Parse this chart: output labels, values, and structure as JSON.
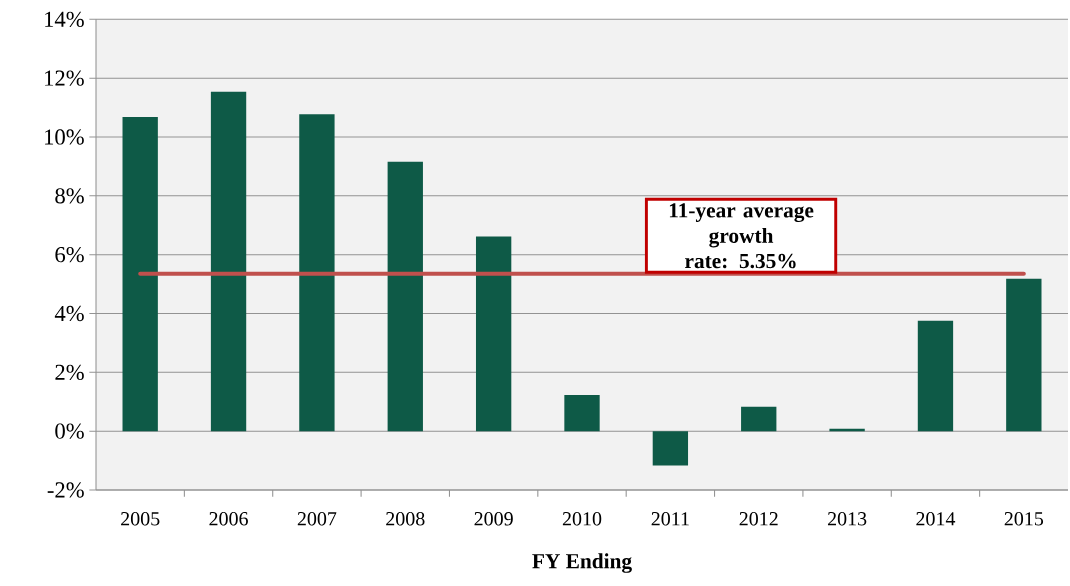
{
  "chart_data": {
    "type": "bar",
    "xlabel": "FY Ending",
    "categories": [
      "2005",
      "2006",
      "2007",
      "2008",
      "2009",
      "2010",
      "2011",
      "2012",
      "2013",
      "2014",
      "2015"
    ],
    "values": [
      10.68,
      11.54,
      10.77,
      9.16,
      6.62,
      1.23,
      -1.17,
      0.83,
      0.08,
      3.75,
      5.18
    ],
    "color": "#0e5a47",
    "ylim": [
      -2,
      14
    ],
    "yticks": [
      {
        "value": -2,
        "label": "-2%"
      },
      {
        "value": 0,
        "label": "0%"
      },
      {
        "value": 2,
        "label": "2%"
      },
      {
        "value": 4,
        "label": "4%"
      },
      {
        "value": 6,
        "label": "6%"
      },
      {
        "value": 8,
        "label": "8%"
      },
      {
        "value": 10,
        "label": "10%"
      },
      {
        "value": 12,
        "label": "12%"
      },
      {
        "value": 14,
        "label": "14%"
      }
    ],
    "grid": "y",
    "ref_lines": [
      {
        "axis": "y",
        "value": 5.35,
        "label": "11-year average growth rate: 5.35%",
        "color": "#c0504d"
      }
    ]
  }
}
